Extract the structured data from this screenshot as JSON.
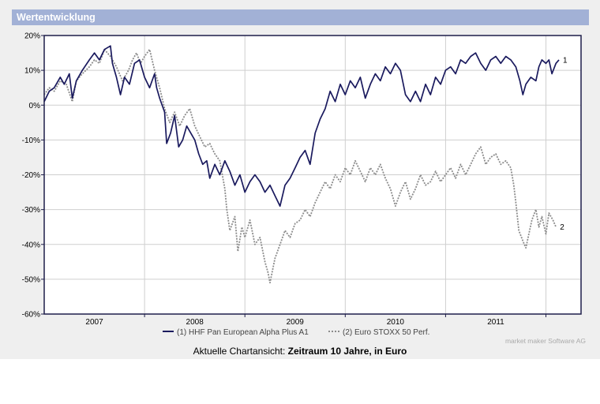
{
  "header": {
    "title": "Wertentwicklung"
  },
  "chart_data": {
    "type": "line",
    "ylim": [
      -60,
      20
    ],
    "yticks": [
      20,
      10,
      0,
      -10,
      -20,
      -30,
      -40,
      -50,
      -60
    ],
    "ytick_labels": [
      "20%",
      "10%",
      "0%",
      "-10%",
      "-20%",
      "-30%",
      "-40%",
      "-50%",
      "-60%"
    ],
    "xlim": [
      2006.5,
      2011.85
    ],
    "year_bounds": [
      2007,
      2008,
      2009,
      2010,
      2011
    ],
    "xtick_labels": [
      {
        "label": "2007",
        "x": 2007.0
      },
      {
        "label": "2008",
        "x": 2008.0
      },
      {
        "label": "2009",
        "x": 2009.0
      },
      {
        "label": "2010",
        "x": 2010.0
      },
      {
        "label": "2011",
        "x": 2011.0
      }
    ],
    "series": [
      {
        "name": "(1) HHF Pan European Alpha Plus A1",
        "end_label": "1",
        "color": "#1a1a5e",
        "style": "solid",
        "points": [
          [
            2006.5,
            1
          ],
          [
            2006.55,
            4
          ],
          [
            2006.6,
            5
          ],
          [
            2006.66,
            8
          ],
          [
            2006.7,
            6
          ],
          [
            2006.75,
            9
          ],
          [
            2006.78,
            2
          ],
          [
            2006.82,
            7
          ],
          [
            2006.88,
            10
          ],
          [
            2006.95,
            13
          ],
          [
            2007.0,
            15
          ],
          [
            2007.05,
            13
          ],
          [
            2007.1,
            16
          ],
          [
            2007.16,
            17
          ],
          [
            2007.18,
            12
          ],
          [
            2007.22,
            8
          ],
          [
            2007.26,
            3
          ],
          [
            2007.3,
            8
          ],
          [
            2007.35,
            6
          ],
          [
            2007.4,
            12
          ],
          [
            2007.45,
            13
          ],
          [
            2007.5,
            8
          ],
          [
            2007.55,
            5
          ],
          [
            2007.6,
            9
          ],
          [
            2007.62,
            5
          ],
          [
            2007.65,
            2
          ],
          [
            2007.7,
            -2
          ],
          [
            2007.72,
            -11
          ],
          [
            2007.76,
            -8
          ],
          [
            2007.8,
            -3
          ],
          [
            2007.84,
            -12
          ],
          [
            2007.88,
            -10
          ],
          [
            2007.92,
            -6
          ],
          [
            2007.96,
            -8
          ],
          [
            2008.0,
            -10
          ],
          [
            2008.04,
            -14
          ],
          [
            2008.08,
            -17
          ],
          [
            2008.12,
            -16
          ],
          [
            2008.15,
            -21
          ],
          [
            2008.2,
            -17
          ],
          [
            2008.25,
            -20
          ],
          [
            2008.3,
            -16
          ],
          [
            2008.35,
            -19
          ],
          [
            2008.4,
            -23
          ],
          [
            2008.45,
            -20
          ],
          [
            2008.5,
            -25
          ],
          [
            2008.55,
            -22
          ],
          [
            2008.6,
            -20
          ],
          [
            2008.65,
            -22
          ],
          [
            2008.7,
            -25
          ],
          [
            2008.75,
            -23
          ],
          [
            2008.8,
            -26
          ],
          [
            2008.85,
            -29
          ],
          [
            2008.9,
            -23
          ],
          [
            2008.95,
            -21
          ],
          [
            2009.0,
            -18
          ],
          [
            2009.05,
            -15
          ],
          [
            2009.1,
            -13
          ],
          [
            2009.15,
            -17
          ],
          [
            2009.2,
            -8
          ],
          [
            2009.25,
            -4
          ],
          [
            2009.3,
            -1
          ],
          [
            2009.35,
            4
          ],
          [
            2009.4,
            1
          ],
          [
            2009.45,
            6
          ],
          [
            2009.5,
            3
          ],
          [
            2009.55,
            7
          ],
          [
            2009.6,
            5
          ],
          [
            2009.65,
            8
          ],
          [
            2009.7,
            2
          ],
          [
            2009.75,
            6
          ],
          [
            2009.8,
            9
          ],
          [
            2009.85,
            7
          ],
          [
            2009.9,
            11
          ],
          [
            2009.95,
            9
          ],
          [
            2010.0,
            12
          ],
          [
            2010.05,
            10
          ],
          [
            2010.1,
            3
          ],
          [
            2010.15,
            1
          ],
          [
            2010.2,
            4
          ],
          [
            2010.25,
            1
          ],
          [
            2010.3,
            6
          ],
          [
            2010.35,
            3
          ],
          [
            2010.4,
            8
          ],
          [
            2010.45,
            6
          ],
          [
            2010.5,
            10
          ],
          [
            2010.55,
            11
          ],
          [
            2010.6,
            9
          ],
          [
            2010.65,
            13
          ],
          [
            2010.7,
            12
          ],
          [
            2010.75,
            14
          ],
          [
            2010.8,
            15
          ],
          [
            2010.85,
            12
          ],
          [
            2010.9,
            10
          ],
          [
            2010.95,
            13
          ],
          [
            2011.0,
            14
          ],
          [
            2011.05,
            12
          ],
          [
            2011.1,
            14
          ],
          [
            2011.15,
            13
          ],
          [
            2011.2,
            11
          ],
          [
            2011.24,
            7
          ],
          [
            2011.27,
            3
          ],
          [
            2011.3,
            6
          ],
          [
            2011.35,
            8
          ],
          [
            2011.4,
            7
          ],
          [
            2011.43,
            11
          ],
          [
            2011.46,
            13
          ],
          [
            2011.5,
            12
          ],
          [
            2011.53,
            13
          ],
          [
            2011.56,
            9
          ],
          [
            2011.6,
            12
          ],
          [
            2011.63,
            13
          ]
        ]
      },
      {
        "name": "(2) Euro STOXX 50 Perf.",
        "end_label": "2",
        "color": "#8c8c8c",
        "style": "dotted",
        "points": [
          [
            2006.5,
            3
          ],
          [
            2006.55,
            5
          ],
          [
            2006.6,
            4
          ],
          [
            2006.66,
            7
          ],
          [
            2006.72,
            6
          ],
          [
            2006.78,
            1
          ],
          [
            2006.82,
            7
          ],
          [
            2006.88,
            9
          ],
          [
            2006.95,
            11
          ],
          [
            2007.0,
            13
          ],
          [
            2007.05,
            12
          ],
          [
            2007.1,
            16
          ],
          [
            2007.16,
            14
          ],
          [
            2007.22,
            11
          ],
          [
            2007.28,
            7
          ],
          [
            2007.34,
            10
          ],
          [
            2007.38,
            13
          ],
          [
            2007.42,
            15
          ],
          [
            2007.46,
            12
          ],
          [
            2007.5,
            14
          ],
          [
            2007.55,
            16
          ],
          [
            2007.6,
            10
          ],
          [
            2007.65,
            5
          ],
          [
            2007.7,
            -1
          ],
          [
            2007.75,
            -5
          ],
          [
            2007.8,
            -2
          ],
          [
            2007.85,
            -6
          ],
          [
            2007.9,
            -3
          ],
          [
            2007.95,
            -1
          ],
          [
            2008.0,
            -6
          ],
          [
            2008.05,
            -9
          ],
          [
            2008.1,
            -12
          ],
          [
            2008.15,
            -11
          ],
          [
            2008.2,
            -14
          ],
          [
            2008.25,
            -16
          ],
          [
            2008.3,
            -24
          ],
          [
            2008.32,
            -30
          ],
          [
            2008.35,
            -36
          ],
          [
            2008.4,
            -32
          ],
          [
            2008.43,
            -42
          ],
          [
            2008.47,
            -35
          ],
          [
            2008.5,
            -38
          ],
          [
            2008.55,
            -33
          ],
          [
            2008.6,
            -40
          ],
          [
            2008.65,
            -38
          ],
          [
            2008.7,
            -45
          ],
          [
            2008.73,
            -48
          ],
          [
            2008.75,
            -51
          ],
          [
            2008.8,
            -44
          ],
          [
            2008.85,
            -40
          ],
          [
            2008.9,
            -36
          ],
          [
            2008.95,
            -38
          ],
          [
            2009.0,
            -34
          ],
          [
            2009.05,
            -33
          ],
          [
            2009.1,
            -30
          ],
          [
            2009.15,
            -32
          ],
          [
            2009.2,
            -28
          ],
          [
            2009.25,
            -25
          ],
          [
            2009.3,
            -22
          ],
          [
            2009.35,
            -24
          ],
          [
            2009.4,
            -20
          ],
          [
            2009.45,
            -22
          ],
          [
            2009.5,
            -18
          ],
          [
            2009.55,
            -20
          ],
          [
            2009.6,
            -16
          ],
          [
            2009.65,
            -19
          ],
          [
            2009.7,
            -22
          ],
          [
            2009.75,
            -18
          ],
          [
            2009.8,
            -20
          ],
          [
            2009.85,
            -17
          ],
          [
            2009.9,
            -21
          ],
          [
            2009.95,
            -24
          ],
          [
            2010.0,
            -29
          ],
          [
            2010.05,
            -25
          ],
          [
            2010.1,
            -22
          ],
          [
            2010.15,
            -27
          ],
          [
            2010.2,
            -24
          ],
          [
            2010.25,
            -20
          ],
          [
            2010.3,
            -23
          ],
          [
            2010.35,
            -22
          ],
          [
            2010.4,
            -19
          ],
          [
            2010.45,
            -22
          ],
          [
            2010.5,
            -20
          ],
          [
            2010.55,
            -18
          ],
          [
            2010.6,
            -21
          ],
          [
            2010.65,
            -17
          ],
          [
            2010.7,
            -20
          ],
          [
            2010.75,
            -17
          ],
          [
            2010.8,
            -14
          ],
          [
            2010.85,
            -12
          ],
          [
            2010.9,
            -17
          ],
          [
            2010.95,
            -15
          ],
          [
            2011.0,
            -14
          ],
          [
            2011.05,
            -17
          ],
          [
            2011.1,
            -16
          ],
          [
            2011.15,
            -18
          ],
          [
            2011.18,
            -23
          ],
          [
            2011.2,
            -28
          ],
          [
            2011.23,
            -36
          ],
          [
            2011.27,
            -39
          ],
          [
            2011.3,
            -41
          ],
          [
            2011.33,
            -37
          ],
          [
            2011.36,
            -33
          ],
          [
            2011.4,
            -30
          ],
          [
            2011.43,
            -35
          ],
          [
            2011.46,
            -32
          ],
          [
            2011.5,
            -37
          ],
          [
            2011.53,
            -31
          ],
          [
            2011.57,
            -33
          ],
          [
            2011.6,
            -35
          ]
        ]
      }
    ]
  },
  "legend": {
    "series1_label": "(1) HHF Pan European Alpha Plus A1",
    "series2_label": "(2) Euro STOXX 50 Perf."
  },
  "credit": "market maker Software AG",
  "caption": {
    "prefix": "Aktuelle Chartansicht: ",
    "bold": "Zeitraum 10 Jahre, in Euro"
  }
}
